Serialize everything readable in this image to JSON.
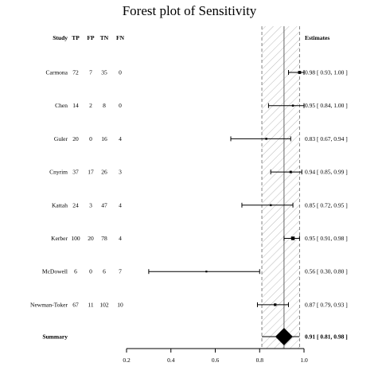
{
  "chart_data": {
    "type": "forest",
    "title": "Forest plot of Sensitivity",
    "columns": [
      "Study",
      "TP",
      "FP",
      "TN",
      "FN"
    ],
    "estimates_header": "Estimates",
    "xaxis": {
      "ticks": [
        0.2,
        0.4,
        0.6,
        0.8,
        1.0
      ],
      "tick_labels": [
        "0.2",
        "0.4",
        "0.6",
        "0.8",
        "1.0"
      ],
      "range": [
        0.2,
        1.0
      ]
    },
    "studies": [
      {
        "name": "Carmona",
        "tp": "72",
        "fp": "7",
        "tn": "35",
        "fn": "0",
        "est": 0.98,
        "lo": 0.93,
        "hi": 1.0,
        "label": "0.98 [ 0.93, 1.00 ]",
        "weight": 0.45
      },
      {
        "name": "Chen",
        "tp": "14",
        "fp": "2",
        "tn": "8",
        "fn": "0",
        "est": 0.95,
        "lo": 0.84,
        "hi": 1.0,
        "label": "0.95 [ 0.84, 1.00 ]",
        "weight": 0.2
      },
      {
        "name": "Guler",
        "tp": "20",
        "fp": "0",
        "tn": "16",
        "fn": "4",
        "est": 0.83,
        "lo": 0.67,
        "hi": 0.94,
        "label": "0.83 [ 0.67, 0.94 ]",
        "weight": 0.2
      },
      {
        "name": "Cnyrim",
        "tp": "37",
        "fp": "17",
        "tn": "26",
        "fn": "3",
        "est": 0.94,
        "lo": 0.85,
        "hi": 0.99,
        "label": "0.94 [ 0.85, 0.99 ]",
        "weight": 0.3
      },
      {
        "name": "Kattah",
        "tp": "24",
        "fp": "3",
        "tn": "47",
        "fn": "4",
        "est": 0.85,
        "lo": 0.72,
        "hi": 0.95,
        "label": "0.85 [ 0.72, 0.95 ]",
        "weight": 0.2
      },
      {
        "name": "Kerber",
        "tp": "100",
        "fp": "20",
        "tn": "78",
        "fn": "4",
        "est": 0.95,
        "lo": 0.91,
        "hi": 0.98,
        "label": "0.95 [ 0.91, 0.98 ]",
        "weight": 0.6
      },
      {
        "name": "McDowell",
        "tp": "6",
        "fp": "0",
        "tn": "6",
        "fn": "7",
        "est": 0.56,
        "lo": 0.3,
        "hi": 0.8,
        "label": "0.56 [ 0.30, 0.80 ]",
        "weight": 0.15
      },
      {
        "name": "Newman-Toker",
        "tp": "67",
        "fp": "11",
        "tn": "102",
        "fn": "10",
        "est": 0.87,
        "lo": 0.79,
        "hi": 0.93,
        "label": "0.87 [ 0.79, 0.93 ]",
        "weight": 0.35
      }
    ],
    "summary": {
      "name": "Summary",
      "est": 0.91,
      "lo": 0.81,
      "hi": 0.98,
      "label": "0.91 [ 0.81, 0.98 ]"
    }
  }
}
